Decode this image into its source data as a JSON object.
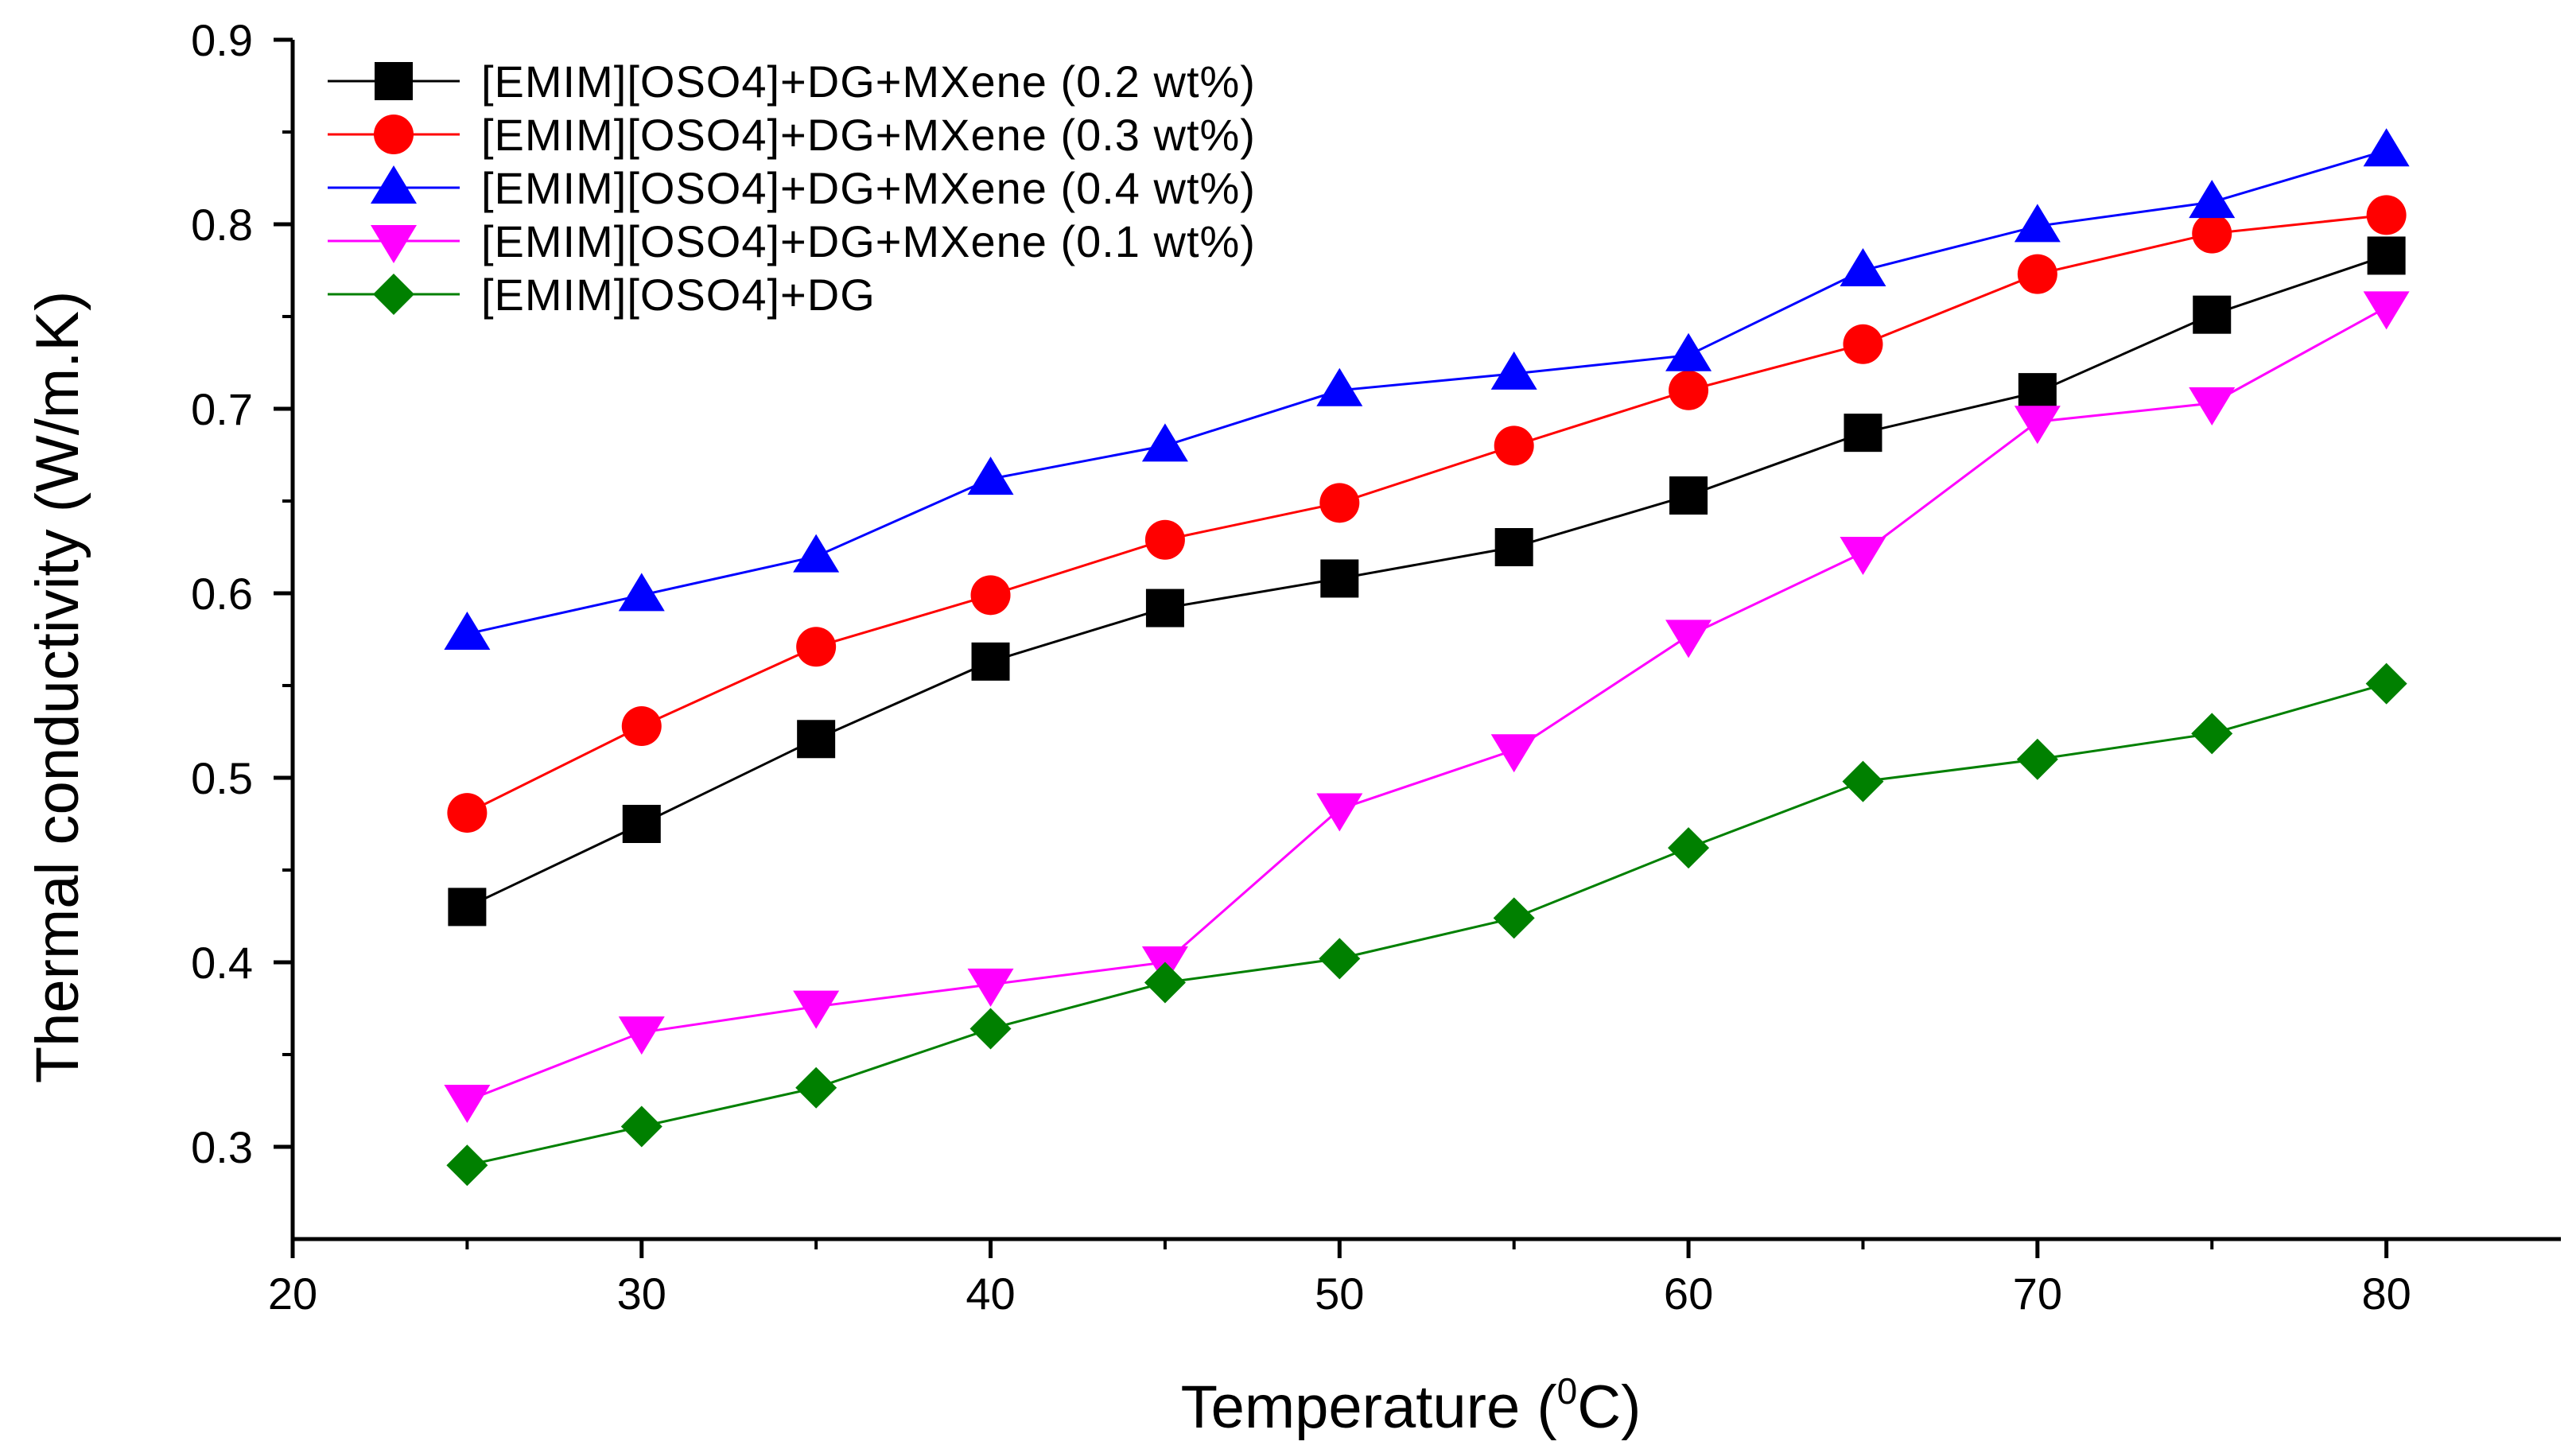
{
  "chart_data": {
    "type": "line",
    "title": "",
    "xlabel": "Temperature (",
    "xlabel_sup": "0",
    "xlabel_suffix": "C)",
    "ylabel": "Thermal conductivity (W/m.K)",
    "xlim": [
      20,
      85
    ],
    "ylim": [
      0.25,
      0.9
    ],
    "xticks": [
      20,
      30,
      40,
      50,
      60,
      70,
      80
    ],
    "yticks": [
      0.3,
      0.4,
      0.5,
      0.6,
      0.7,
      0.8,
      0.9
    ],
    "x": [
      25,
      30,
      35,
      40,
      45,
      50,
      55,
      60,
      65,
      70,
      75,
      80
    ],
    "legend_position": "top-left",
    "series": [
      {
        "name": "[EMIM][OSO4]+DG+MXene (0.2 wt%)",
        "marker": "square",
        "color": "#000000",
        "values": [
          0.43,
          0.475,
          0.521,
          0.563,
          0.592,
          0.608,
          0.625,
          0.653,
          0.687,
          0.709,
          0.751,
          0.783
        ]
      },
      {
        "name": "[EMIM][OSO4]+DG+MXene (0.3 wt%)",
        "marker": "circle",
        "color": "#ff0000",
        "values": [
          0.481,
          0.528,
          0.571,
          0.599,
          0.629,
          0.649,
          0.68,
          0.71,
          0.735,
          0.773,
          0.795,
          0.805
        ]
      },
      {
        "name": "[EMIM][OSO4]+DG+MXene (0.4 wt%)",
        "marker": "triangle-up",
        "color": "#0000ff",
        "values": [
          0.578,
          0.599,
          0.62,
          0.662,
          0.68,
          0.71,
          0.719,
          0.729,
          0.775,
          0.799,
          0.812,
          0.84
        ]
      },
      {
        "name": "[EMIM][OSO4]+DG+MXene (0.1 wt%)",
        "marker": "triangle-down",
        "color": "#ff00ff",
        "values": [
          0.325,
          0.362,
          0.376,
          0.388,
          0.4,
          0.483,
          0.515,
          0.577,
          0.622,
          0.693,
          0.703,
          0.755
        ]
      },
      {
        "name": "[EMIM][OSO4]+DG",
        "marker": "diamond",
        "color": "#008000",
        "values": [
          0.29,
          0.311,
          0.332,
          0.364,
          0.389,
          0.402,
          0.424,
          0.462,
          0.498,
          0.51,
          0.524,
          0.551
        ]
      }
    ]
  }
}
